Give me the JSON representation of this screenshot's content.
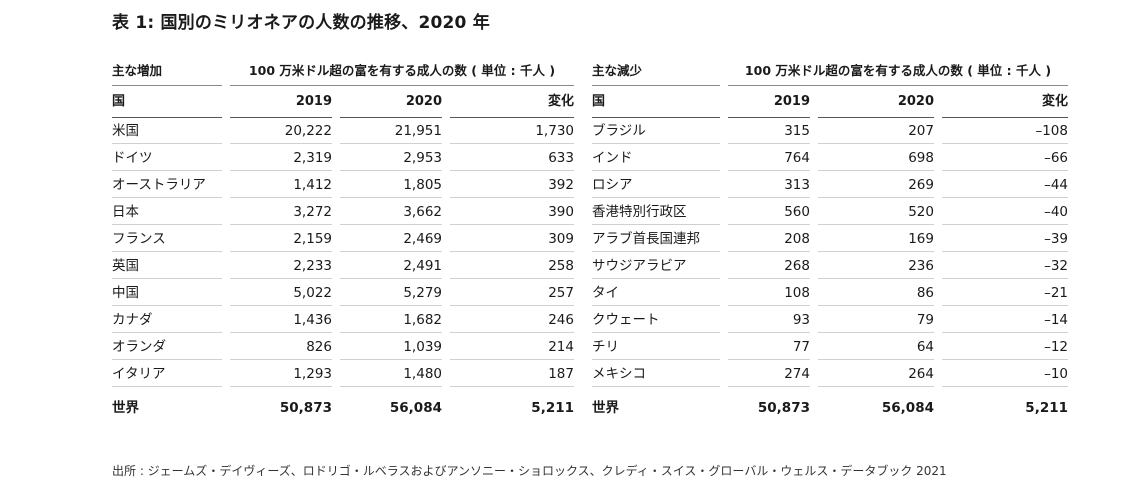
{
  "title": "表 1: 国別のミリオネアの人数の推移、2020 年",
  "left": {
    "group_label": "主な増加",
    "span_header": "100 万米ドル超の富を有する成人の数 ( 単位 : 千人 )",
    "headers": [
      "国",
      "2019",
      "2020",
      "変化"
    ],
    "rows": [
      [
        "米国",
        "20,222",
        "21,951",
        "1,730"
      ],
      [
        "ドイツ",
        "2,319",
        "2,953",
        "633"
      ],
      [
        "オーストラリア",
        "1,412",
        "1,805",
        "392"
      ],
      [
        "日本",
        "3,272",
        "3,662",
        "390"
      ],
      [
        "フランス",
        "2,159",
        "2,469",
        "309"
      ],
      [
        "英国",
        "2,233",
        "2,491",
        "258"
      ],
      [
        "中国",
        "5,022",
        "5,279",
        "257"
      ],
      [
        "カナダ",
        "1,436",
        "1,682",
        "246"
      ],
      [
        "オランダ",
        "826",
        "1,039",
        "214"
      ],
      [
        "イタリア",
        "1,293",
        "1,480",
        "187"
      ]
    ],
    "total": [
      "世界",
      "50,873",
      "56,084",
      "5,211"
    ]
  },
  "right": {
    "group_label": "主な減少",
    "span_header": "100 万米ドル超の富を有する成人の数 ( 単位 : 千人 )",
    "headers": [
      "国",
      "2019",
      "2020",
      "変化"
    ],
    "rows": [
      [
        "ブラジル",
        "315",
        "207",
        "–108"
      ],
      [
        "インド",
        "764",
        "698",
        "–66"
      ],
      [
        "ロシア",
        "313",
        "269",
        "–44"
      ],
      [
        "香港特別行政区",
        "560",
        "520",
        "–40"
      ],
      [
        "アラブ首長国連邦",
        "208",
        "169",
        "–39"
      ],
      [
        "サウジアラビア",
        "268",
        "236",
        "–32"
      ],
      [
        "タイ",
        "108",
        "86",
        "–21"
      ],
      [
        "クウェート",
        "93",
        "79",
        "–14"
      ],
      [
        "チリ",
        "77",
        "64",
        "–12"
      ],
      [
        "メキシコ",
        "274",
        "264",
        "–10"
      ]
    ],
    "total": [
      "世界",
      "50,873",
      "56,084",
      "5,211"
    ]
  },
  "source": "出所 : ジェームズ・デイヴィーズ、ロドリゴ・ルベラスおよびアンソニー・ショロックス、クレディ・スイス・グローバル・ウェルス・データブック 2021"
}
